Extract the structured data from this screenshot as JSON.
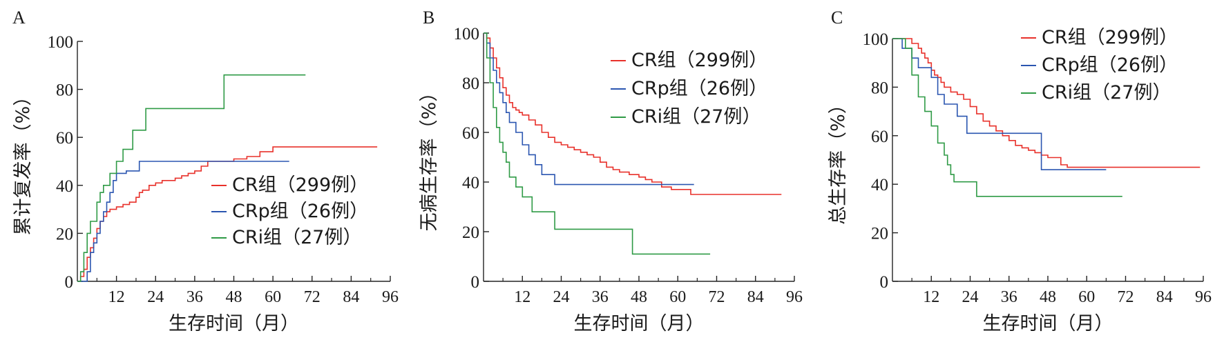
{
  "panels": [
    {
      "letter": "A",
      "ylabel": "累计复发率（%）",
      "xlabel": "生存时间（月）",
      "xticks": [
        12,
        24,
        36,
        48,
        60,
        72,
        84,
        96
      ],
      "yticks": [
        0,
        20,
        40,
        60,
        80,
        100
      ],
      "legend_position": "lower-right",
      "legend": [
        {
          "label": "CR组（299例）",
          "color": "#e8302a"
        },
        {
          "label": "CRp组（26例）",
          "color": "#2a55b0"
        },
        {
          "label": "CRi组（27例）",
          "color": "#2e9a45"
        }
      ]
    },
    {
      "letter": "B",
      "ylabel": "无病生存率（%）",
      "xlabel": "生存时间（月）",
      "xticks": [
        12,
        24,
        36,
        48,
        60,
        72,
        84,
        96
      ],
      "yticks": [
        0,
        20,
        40,
        60,
        80,
        100
      ],
      "legend_position": "top-right",
      "legend": [
        {
          "label": "CR组（299例）",
          "color": "#e8302a"
        },
        {
          "label": "CRp组（26例）",
          "color": "#2a55b0"
        },
        {
          "label": "CRi组（27例）",
          "color": "#2e9a45"
        }
      ]
    },
    {
      "letter": "C",
      "ylabel": "总生存率（%）",
      "xlabel": "生存时间（月）",
      "xticks": [
        12,
        24,
        36,
        48,
        60,
        72,
        84,
        96
      ],
      "yticks": [
        0,
        20,
        40,
        60,
        80,
        100
      ],
      "legend_position": "top-right",
      "legend": [
        {
          "label": "CR组（299例）",
          "color": "#e8302a"
        },
        {
          "label": "CRp组（26例）",
          "color": "#2a55b0"
        },
        {
          "label": "CRi组（27例）",
          "color": "#2e9a45"
        }
      ]
    }
  ],
  "chart_data": [
    {
      "type": "line",
      "step": true,
      "xlim": [
        0,
        96
      ],
      "ylim": [
        0,
        100
      ],
      "series": [
        {
          "name": "CR组（299例）",
          "color": "#e8302a",
          "x": [
            0,
            1,
            2,
            3,
            4,
            5,
            6,
            7,
            8,
            9,
            10,
            12,
            14,
            16,
            18,
            19,
            20,
            22,
            24,
            26,
            28,
            30,
            32,
            34,
            36,
            38,
            40,
            45,
            48,
            52,
            56,
            60,
            66,
            72,
            80,
            92
          ],
          "y": [
            0,
            2,
            5,
            10,
            14,
            18,
            22,
            25,
            27,
            29,
            30,
            31,
            32,
            33,
            35,
            37,
            38,
            40,
            41,
            42,
            42,
            43,
            44,
            45,
            46,
            48,
            50,
            50,
            51,
            52,
            54,
            56,
            56,
            56,
            56,
            56
          ]
        },
        {
          "name": "CRp组（26例）",
          "color": "#2a55b0",
          "x": [
            0,
            3,
            4,
            5,
            6,
            7,
            8,
            9,
            10,
            11,
            12,
            15,
            19,
            20,
            26,
            35,
            48,
            56,
            65
          ],
          "y": [
            0,
            4,
            12,
            16,
            20,
            25,
            29,
            33,
            37,
            42,
            45,
            46,
            50,
            50,
            50,
            50,
            50,
            50,
            50
          ]
        },
        {
          "name": "CRi组（27例）",
          "color": "#2e9a45",
          "x": [
            0,
            1,
            2,
            3,
            4,
            6,
            7,
            8,
            10,
            12,
            14,
            17,
            21,
            24,
            30,
            45,
            50,
            60,
            70
          ],
          "y": [
            0,
            4,
            12,
            20,
            25,
            33,
            37,
            40,
            45,
            50,
            55,
            63,
            72,
            72,
            72,
            86,
            86,
            86,
            86
          ]
        }
      ]
    },
    {
      "type": "line",
      "step": true,
      "xlim": [
        0,
        96
      ],
      "ylim": [
        0,
        100
      ],
      "series": [
        {
          "name": "CR组（299例）",
          "color": "#e8302a",
          "x": [
            0,
            1,
            2,
            3,
            4,
            5,
            6,
            7,
            8,
            9,
            10,
            11,
            12,
            14,
            16,
            18,
            20,
            22,
            24,
            26,
            28,
            30,
            32,
            34,
            36,
            38,
            40,
            42,
            45,
            48,
            50,
            52,
            55,
            58,
            60,
            64,
            70,
            80,
            92
          ],
          "y": [
            100,
            98,
            94,
            90,
            86,
            82,
            78,
            75,
            72,
            70,
            69,
            68,
            67,
            65,
            63,
            60,
            58,
            56,
            55,
            54,
            53,
            52,
            51,
            50,
            48,
            46,
            45,
            44,
            43,
            42,
            41,
            40,
            38,
            37,
            37,
            35,
            35,
            35,
            35
          ]
        },
        {
          "name": "CRp组（26例）",
          "color": "#2a55b0",
          "x": [
            0,
            1,
            2,
            3,
            4,
            5,
            6,
            7,
            8,
            10,
            12,
            14,
            16,
            18,
            22,
            30,
            40,
            50,
            65
          ],
          "y": [
            100,
            96,
            90,
            85,
            80,
            76,
            72,
            68,
            64,
            60,
            55,
            51,
            47,
            43,
            39,
            39,
            39,
            39,
            39
          ]
        },
        {
          "name": "CRi组（27例）",
          "color": "#2e9a45",
          "x": [
            0,
            1,
            2,
            3,
            4,
            5,
            6,
            7,
            8,
            10,
            12,
            15,
            22,
            30,
            40,
            44,
            46,
            56,
            70
          ],
          "y": [
            100,
            90,
            80,
            70,
            62,
            56,
            52,
            48,
            42,
            38,
            34,
            28,
            21,
            21,
            21,
            21,
            11,
            11,
            11
          ]
        }
      ]
    },
    {
      "type": "line",
      "step": true,
      "xlim": [
        0,
        96
      ],
      "ylim": [
        0,
        100
      ],
      "series": [
        {
          "name": "CR组（299例）",
          "color": "#e8302a",
          "x": [
            0,
            4,
            6,
            8,
            9,
            10,
            11,
            12,
            13,
            14,
            15,
            16,
            18,
            20,
            22,
            24,
            26,
            28,
            30,
            32,
            34,
            36,
            38,
            40,
            42,
            44,
            46,
            48,
            52,
            54,
            60,
            70,
            80,
            95
          ],
          "y": [
            100,
            100,
            98,
            96,
            94,
            92,
            90,
            87,
            85,
            84,
            82,
            80,
            78,
            77,
            75,
            72,
            69,
            66,
            64,
            62,
            60,
            58,
            56,
            55,
            54,
            53,
            52,
            51,
            48,
            47,
            47,
            47,
            47,
            47
          ]
        },
        {
          "name": "CRp组（26例）",
          "color": "#2a55b0",
          "x": [
            0,
            3,
            6,
            8,
            12,
            14,
            16,
            20,
            23,
            30,
            36,
            46,
            50,
            60,
            66
          ],
          "y": [
            100,
            96,
            92,
            88,
            84,
            77,
            73,
            68,
            61,
            61,
            61,
            46,
            46,
            46,
            46
          ]
        },
        {
          "name": "CRi组（27例）",
          "color": "#2e9a45",
          "x": [
            0,
            4,
            6,
            8,
            10,
            12,
            14,
            16,
            17,
            18,
            19,
            20,
            22,
            26,
            30,
            40,
            50,
            60,
            71
          ],
          "y": [
            100,
            96,
            85,
            76,
            70,
            64,
            57,
            52,
            48,
            44,
            41,
            41,
            41,
            35,
            35,
            35,
            35,
            35,
            35
          ]
        }
      ]
    }
  ]
}
